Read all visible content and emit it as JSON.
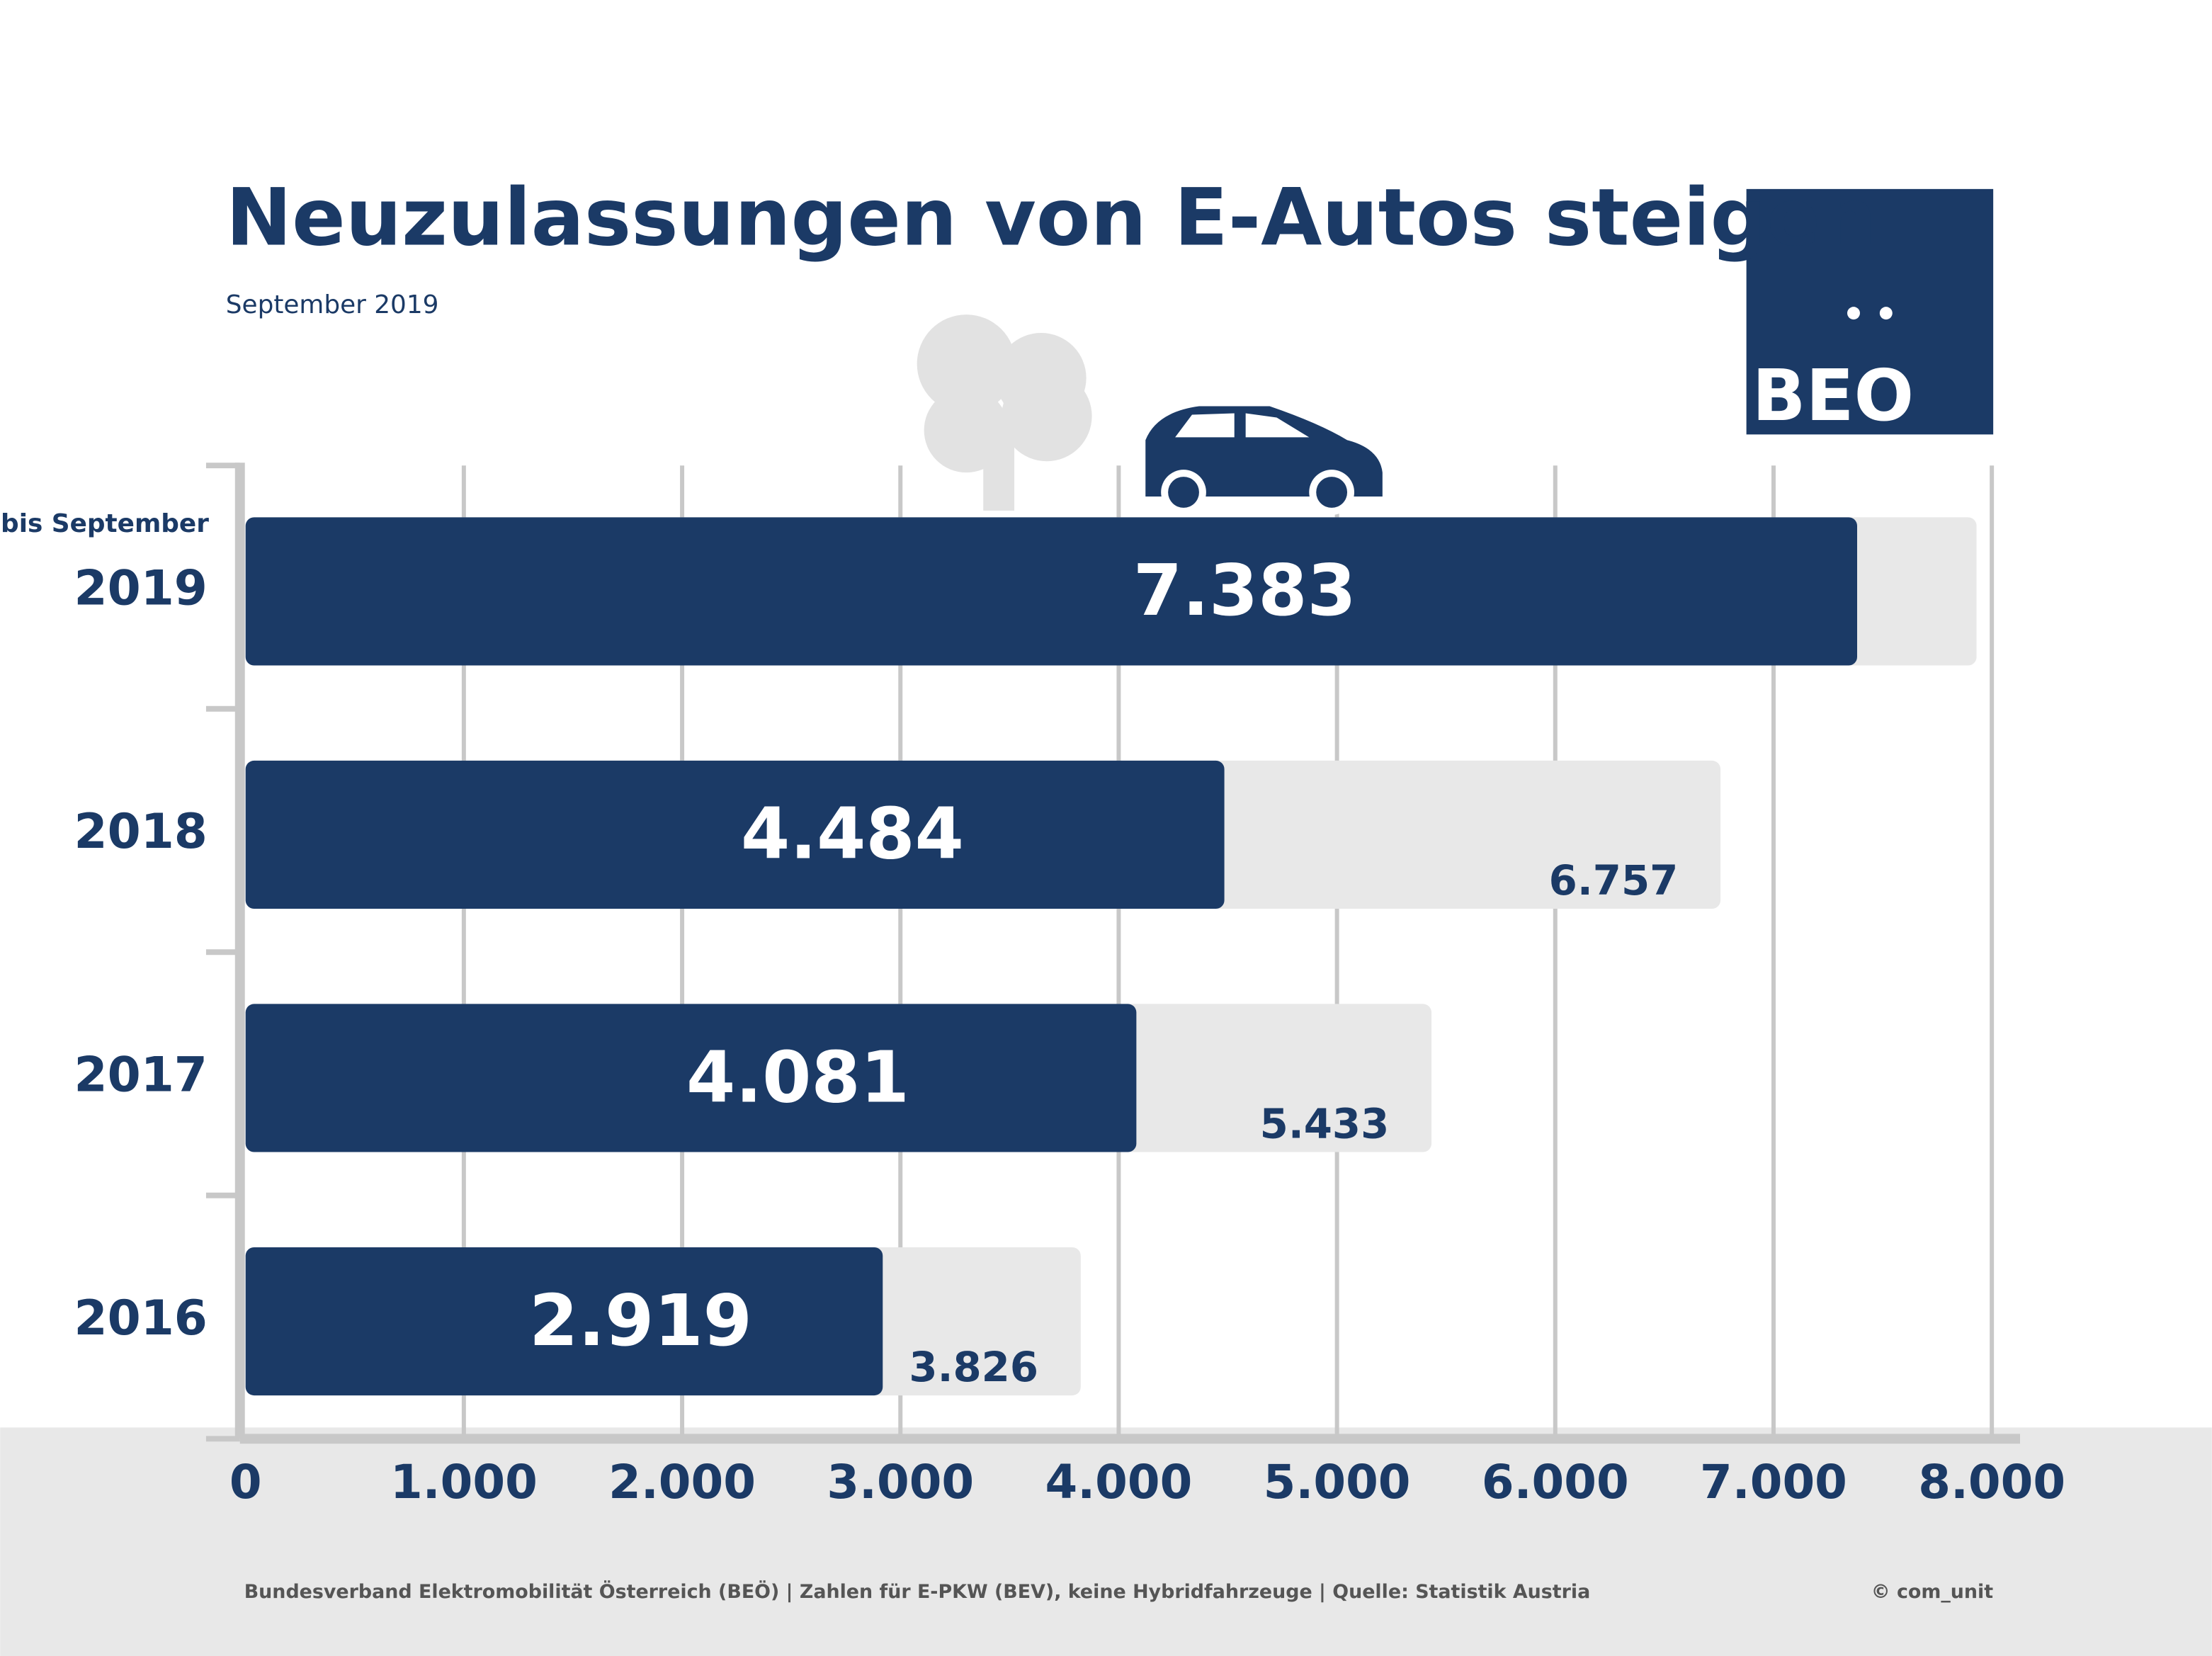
{
  "chart_data": {
    "type": "bar",
    "orientation": "horizontal",
    "title": "Neuzulassungen von E-Autos steigen",
    "subtitle": "September 2019",
    "annotation": "bis September",
    "logo": "BEO",
    "footer": "Bundesverband Elektromobilität Österreich (BEÖ) | Zahlen für E-PKW (BEV), keine Hybridfahrzeuge | Quelle: Statistik Austria",
    "credit": "© com_unit",
    "categories": [
      "2019",
      "2018",
      "2017",
      "2016"
    ],
    "series": [
      {
        "color": "#e8e8e8",
        "values": [
          7930,
          6757,
          5433,
          3826
        ],
        "value_labels": [
          null,
          "6.757",
          "5.433",
          "3.826"
        ]
      },
      {
        "color": "#1b3a66",
        "values": [
          7383,
          4484,
          4081,
          2919
        ],
        "value_labels": [
          "7.383",
          "4.484",
          "4.081",
          "2.919"
        ]
      }
    ],
    "xlim": [
      0,
      8000
    ],
    "xticks": [
      0,
      {
        "value": 1000,
        "label": "1.000"
      },
      {
        "value": 2000,
        "label": "2.000"
      },
      {
        "value": 3000,
        "label": "3.000"
      },
      {
        "value": 4000,
        "label": "4.000"
      },
      {
        "value": 5000,
        "label": "5.000"
      },
      {
        "value": 6000,
        "label": "6.000"
      },
      {
        "value": 7000,
        "label": "7.000"
      },
      {
        "value": 8000,
        "label": "8.000"
      }
    ],
    "grid": true
  }
}
